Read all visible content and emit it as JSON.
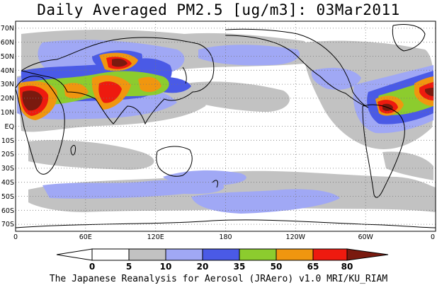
{
  "title": "Daily Averaged PM2.5 [ug/m3]: 03Mar2011",
  "footer": "The Japanese Reanalysis for Aerosol (JRAero) v1.0 MRI/KU_RIAM",
  "map": {
    "projection": "equirectangular",
    "lon_range": [
      0,
      360
    ],
    "lat_range": [
      -75,
      75
    ],
    "grid": "dotted",
    "lat_labels": [
      "70N",
      "60N",
      "50N",
      "40N",
      "30N",
      "20N",
      "10N",
      "EQ",
      "10S",
      "20S",
      "30S",
      "40S",
      "50S",
      "60S",
      "70S"
    ],
    "lon_labels": [
      "0",
      "60E",
      "120E",
      "180",
      "120W",
      "60W",
      "0"
    ]
  },
  "colorbar": {
    "levels": [
      "0",
      "5",
      "10",
      "20",
      "35",
      "50",
      "65",
      "80"
    ],
    "colors": [
      "#ffffff",
      "#ffffff",
      "#c2c2c2",
      "#a0a8f5",
      "#4a5ae6",
      "#8ccc2e",
      "#f0960f",
      "#ee1a0f",
      "#7a1a0f"
    ],
    "extend": "both"
  }
}
